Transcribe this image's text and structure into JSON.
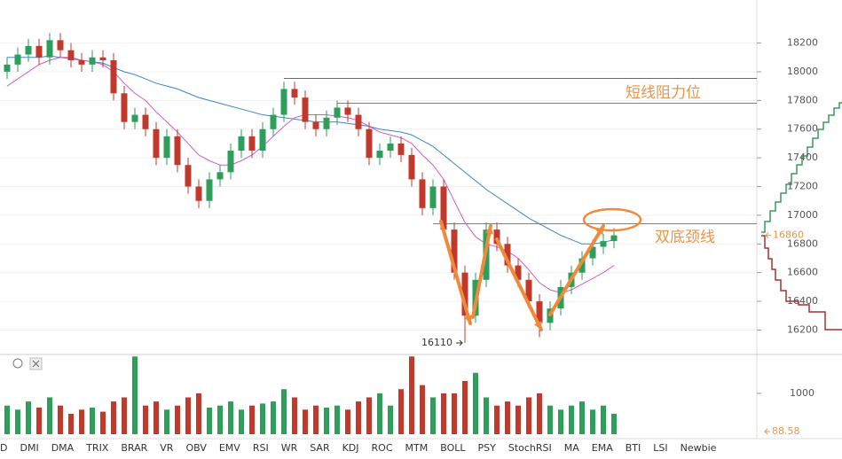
{
  "chart_data": {
    "type": "candlestick",
    "open": [
      18000,
      18050,
      18120,
      18180,
      18100,
      18220,
      18150,
      18080,
      18050,
      18100,
      18080,
      17850,
      17650,
      17700,
      17600,
      17400,
      17550,
      17350,
      17200,
      17100,
      17250,
      17300,
      17450,
      17550,
      17450,
      17600,
      17700,
      17880,
      17820,
      17650,
      17600,
      17680,
      17750,
      17700,
      17600,
      17400,
      17450,
      17500,
      17420,
      17250,
      17050,
      17200,
      16900,
      16600,
      16300,
      16550,
      16900,
      16800,
      16650,
      16550,
      16400,
      16250,
      16350,
      16500,
      16600,
      16700,
      16780,
      16820
    ],
    "high": [
      18100,
      18170,
      18230,
      18230,
      18270,
      18270,
      18200,
      18130,
      18150,
      18150,
      18130,
      17900,
      17750,
      17750,
      17650,
      17600,
      17600,
      17400,
      17250,
      17300,
      17350,
      17500,
      17600,
      17600,
      17650,
      17750,
      17930,
      17930,
      17870,
      17700,
      17730,
      17800,
      17800,
      17750,
      17650,
      17500,
      17550,
      17550,
      17470,
      17300,
      17250,
      17250,
      16950,
      16650,
      16600,
      16950,
      16950,
      16850,
      16700,
      16600,
      16450,
      16400,
      16550,
      16650,
      16750,
      16830,
      16870,
      16910
    ],
    "low": [
      17950,
      18000,
      18070,
      18050,
      18050,
      18100,
      18030,
      18000,
      18000,
      18030,
      17800,
      17600,
      17600,
      17550,
      17350,
      17350,
      17300,
      17150,
      17050,
      17050,
      17200,
      17250,
      17400,
      17400,
      17400,
      17550,
      17650,
      17770,
      17600,
      17550,
      17550,
      17630,
      17650,
      17550,
      17350,
      17350,
      17400,
      17370,
      17200,
      17000,
      17000,
      16850,
      16550,
      16110,
      16250,
      16500,
      16750,
      16600,
      16500,
      16350,
      16150,
      16200,
      16300,
      16450,
      16550,
      16650,
      16730,
      16770
    ],
    "close": [
      18050,
      18120,
      18180,
      18100,
      18220,
      18150,
      18080,
      18050,
      18100,
      18080,
      17850,
      17650,
      17700,
      17600,
      17400,
      17550,
      17350,
      17200,
      17100,
      17250,
      17300,
      17450,
      17550,
      17450,
      17600,
      17700,
      17880,
      17820,
      17650,
      17600,
      17680,
      17750,
      17700,
      17600,
      17400,
      17450,
      17500,
      17420,
      17250,
      17050,
      17200,
      16900,
      16600,
      16300,
      16550,
      16900,
      16800,
      16650,
      16550,
      16400,
      16250,
      16350,
      16500,
      16600,
      16700,
      16780,
      16820,
      16860
    ],
    "up_color": "#2e9e5b",
    "down_color": "#c0392b",
    "ma_lines": [
      {
        "color": "#3a86c8",
        "values": [
          18100,
          18100,
          18100,
          18100,
          18110,
          18100,
          18090,
          18080,
          18070,
          18060,
          18030,
          18000,
          17980,
          17950,
          17920,
          17900,
          17880,
          17850,
          17820,
          17800,
          17780,
          17760,
          17740,
          17720,
          17700,
          17690,
          17680,
          17670,
          17660,
          17650,
          17650,
          17650,
          17640,
          17630,
          17620,
          17600,
          17590,
          17580,
          17560,
          17520,
          17480,
          17420,
          17360,
          17300,
          17240,
          17180,
          17130,
          17080,
          17030,
          16980,
          16940,
          16900,
          16860,
          16830,
          16800,
          16800,
          16810,
          16830
        ]
      },
      {
        "color": "#d45bc8",
        "values": [
          17900,
          17950,
          18000,
          18050,
          18080,
          18100,
          18100,
          18080,
          18070,
          18050,
          18000,
          17920,
          17850,
          17800,
          17720,
          17650,
          17580,
          17500,
          17420,
          17380,
          17350,
          17350,
          17380,
          17420,
          17480,
          17550,
          17620,
          17680,
          17700,
          17700,
          17700,
          17690,
          17680,
          17660,
          17620,
          17580,
          17560,
          17540,
          17500,
          17420,
          17350,
          17250,
          17100,
          16950,
          16850,
          16800,
          16780,
          16750,
          16700,
          16620,
          16530,
          16480,
          16460,
          16480,
          16520,
          16560,
          16600,
          16650
        ]
      }
    ],
    "ylim": [
      16030,
      18500
    ],
    "yticks": [
      16200,
      16400,
      16600,
      16800,
      17000,
      17200,
      17400,
      17600,
      17800,
      18000,
      18200
    ],
    "grid": true,
    "horizontal_lines": [
      {
        "value": 17953,
        "from_index": 26
      },
      {
        "value": 17780,
        "from_index": 31
      },
      {
        "value": 16941,
        "from_index": 40
      }
    ],
    "annotations": [
      {
        "text": "短线阻力位",
        "value": 17800
      },
      {
        "text": "双底颈线",
        "value": 16860
      }
    ],
    "low_label": "16110",
    "current_price": 16860,
    "current_price_label": "16860",
    "volume": [
      700,
      600,
      800,
      650,
      900,
      700,
      500,
      600,
      650,
      550,
      800,
      900,
      1900,
      700,
      800,
      600,
      700,
      900,
      1000,
      650,
      700,
      800,
      600,
      700,
      750,
      800,
      1100,
      900,
      600,
      700,
      650,
      700,
      600,
      800,
      900,
      1000,
      700,
      1100,
      1900,
      1200,
      900,
      1000,
      1000,
      1300,
      1500,
      900,
      700,
      800,
      700,
      900,
      1000,
      700,
      600,
      700,
      800,
      600,
      700,
      500
    ],
    "volume_ylim": [
      0,
      1950
    ],
    "volume_yticks": [
      1000
    ],
    "volume_current": 88.58,
    "volume_current_label": "88.58",
    "tabs": [
      "D",
      "DMI",
      "DMA",
      "TRIX",
      "BRAR",
      "VR",
      "OBV",
      "EMV",
      "RSI",
      "WR",
      "SAR",
      "KDJ",
      "ROC",
      "MTM",
      "BOLL",
      "PSY",
      "StochRSI",
      "MA",
      "EMA",
      "BTI",
      "LSI",
      "Newbie"
    ]
  }
}
